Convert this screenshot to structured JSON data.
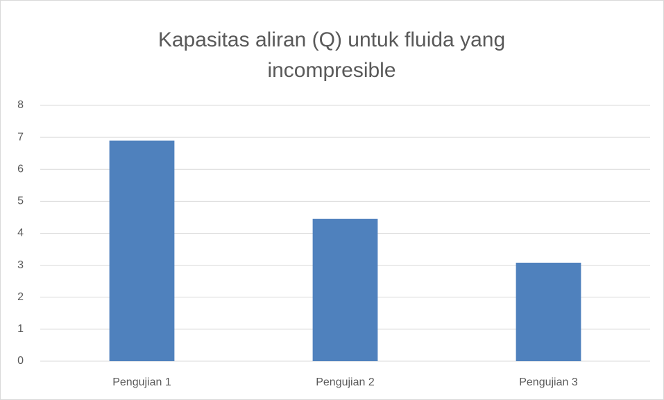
{
  "chart_data": {
    "type": "bar",
    "title": "Kapasitas aliran (Q) untuk fluida yang incompresible",
    "categories": [
      "Pengujian 1",
      "Pengujian 2",
      "Pengujian 3"
    ],
    "values": [
      6.9,
      4.45,
      3.08
    ],
    "color": "#4f81bd",
    "ylim": [
      0,
      8
    ],
    "yticks": [
      0,
      1,
      2,
      3,
      4,
      5,
      6,
      7,
      8
    ],
    "grid": true
  }
}
